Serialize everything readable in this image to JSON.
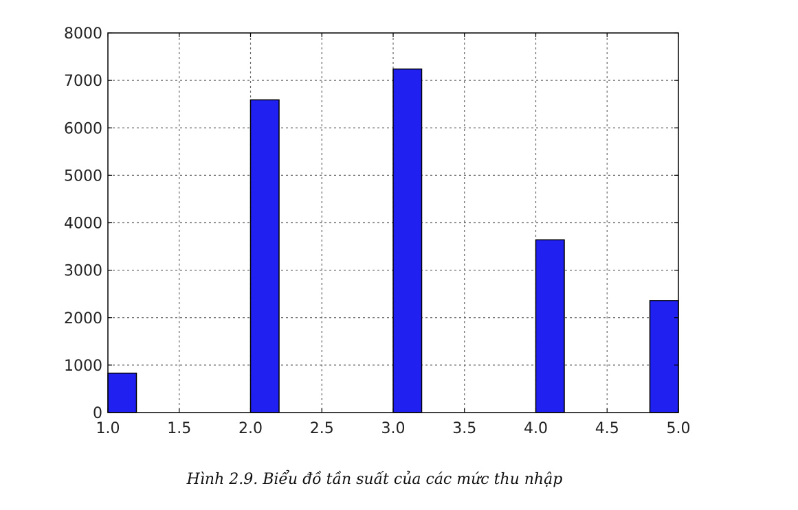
{
  "chart_data": {
    "type": "bar",
    "title": "",
    "xlabel": "",
    "ylabel": "",
    "xlim": [
      1.0,
      5.0
    ],
    "ylim": [
      0,
      8000
    ],
    "grid": true,
    "bar_color": "#2020f0",
    "bars": [
      {
        "x_start": 1.0,
        "x_end": 1.2,
        "value": 830
      },
      {
        "x_start": 2.0,
        "x_end": 2.2,
        "value": 6590
      },
      {
        "x_start": 3.0,
        "x_end": 3.2,
        "value": 7240
      },
      {
        "x_start": 4.0,
        "x_end": 4.2,
        "value": 3640
      },
      {
        "x_start": 4.8,
        "x_end": 5.0,
        "value": 2360
      }
    ],
    "x_ticks": [
      "1.0",
      "1.5",
      "2.0",
      "2.5",
      "3.0",
      "3.5",
      "4.0",
      "4.5",
      "5.0"
    ],
    "y_ticks": [
      "0",
      "1000",
      "2000",
      "3000",
      "4000",
      "5000",
      "6000",
      "7000",
      "8000"
    ]
  },
  "caption": "Hình 2.9. Biểu đồ tần suất của các mức thu nhập"
}
